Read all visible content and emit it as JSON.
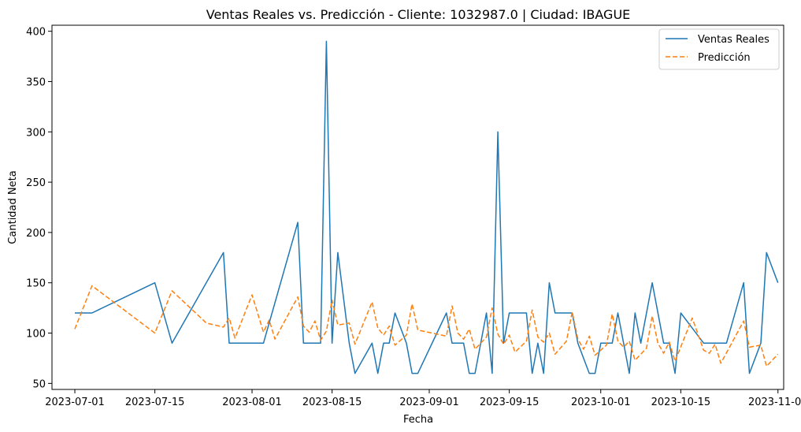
{
  "chart_data": {
    "type": "line",
    "title": "Ventas Reales vs. Predicción - Cliente: 1032987.0 | Ciudad: IBAGUE",
    "xlabel": "Fecha",
    "ylabel": "Cantidad Neta",
    "xlim": [
      "2023-06-27",
      "2023-11-02"
    ],
    "ylim": [
      44,
      406
    ],
    "x_ticks": [
      "2023-07-01",
      "2023-07-15",
      "2023-08-01",
      "2023-08-15",
      "2023-09-01",
      "2023-09-15",
      "2023-10-01",
      "2023-10-15",
      "2023-11-01"
    ],
    "y_ticks": [
      50,
      100,
      150,
      200,
      250,
      300,
      350,
      400
    ],
    "grid": false,
    "legend_position": "top-right",
    "series": [
      {
        "name": "Ventas Reales",
        "color": "#1f77b4",
        "style": "solid",
        "points": [
          [
            "2023-07-01",
            120
          ],
          [
            "2023-07-04",
            120
          ],
          [
            "2023-07-15",
            150
          ],
          [
            "2023-07-18",
            90
          ],
          [
            "2023-07-27",
            180
          ],
          [
            "2023-07-28",
            90
          ],
          [
            "2023-08-03",
            90
          ],
          [
            "2023-08-09",
            210
          ],
          [
            "2023-08-10",
            90
          ],
          [
            "2023-08-13",
            90
          ],
          [
            "2023-08-14",
            390
          ],
          [
            "2023-08-15",
            90
          ],
          [
            "2023-08-16",
            180
          ],
          [
            "2023-08-18",
            90
          ],
          [
            "2023-08-19",
            60
          ],
          [
            "2023-08-22",
            90
          ],
          [
            "2023-08-23",
            60
          ],
          [
            "2023-08-24",
            90
          ],
          [
            "2023-08-25",
            90
          ],
          [
            "2023-08-26",
            120
          ],
          [
            "2023-08-28",
            90
          ],
          [
            "2023-08-29",
            60
          ],
          [
            "2023-08-30",
            60
          ],
          [
            "2023-09-04",
            120
          ],
          [
            "2023-09-05",
            90
          ],
          [
            "2023-09-07",
            90
          ],
          [
            "2023-09-08",
            60
          ],
          [
            "2023-09-09",
            60
          ],
          [
            "2023-09-11",
            120
          ],
          [
            "2023-09-12",
            60
          ],
          [
            "2023-09-13",
            300
          ],
          [
            "2023-09-14",
            90
          ],
          [
            "2023-09-15",
            120
          ],
          [
            "2023-09-18",
            120
          ],
          [
            "2023-09-19",
            60
          ],
          [
            "2023-09-20",
            90
          ],
          [
            "2023-09-21",
            60
          ],
          [
            "2023-09-22",
            150
          ],
          [
            "2023-09-23",
            120
          ],
          [
            "2023-09-26",
            120
          ],
          [
            "2023-09-27",
            90
          ],
          [
            "2023-09-29",
            60
          ],
          [
            "2023-09-30",
            60
          ],
          [
            "2023-10-01",
            90
          ],
          [
            "2023-10-03",
            90
          ],
          [
            "2023-10-04",
            120
          ],
          [
            "2023-10-06",
            60
          ],
          [
            "2023-10-07",
            120
          ],
          [
            "2023-10-08",
            90
          ],
          [
            "2023-10-10",
            150
          ],
          [
            "2023-10-12",
            90
          ],
          [
            "2023-10-13",
            90
          ],
          [
            "2023-10-14",
            60
          ],
          [
            "2023-10-15",
            120
          ],
          [
            "2023-10-19",
            90
          ],
          [
            "2023-10-23",
            90
          ],
          [
            "2023-10-26",
            150
          ],
          [
            "2023-10-27",
            60
          ],
          [
            "2023-10-29",
            90
          ],
          [
            "2023-10-30",
            180
          ],
          [
            "2023-11-01",
            150
          ]
        ]
      },
      {
        "name": "Predicción",
        "color": "#ff7f0e",
        "style": "dashed",
        "points": [
          [
            "2023-07-01",
            104
          ],
          [
            "2023-07-04",
            147
          ],
          [
            "2023-07-15",
            100
          ],
          [
            "2023-07-18",
            142
          ],
          [
            "2023-07-24",
            110
          ],
          [
            "2023-07-27",
            106
          ],
          [
            "2023-07-28",
            115
          ],
          [
            "2023-07-29",
            95
          ],
          [
            "2023-08-01",
            138
          ],
          [
            "2023-08-03",
            101
          ],
          [
            "2023-08-04",
            113
          ],
          [
            "2023-08-05",
            94
          ],
          [
            "2023-08-09",
            136
          ],
          [
            "2023-08-10",
            107
          ],
          [
            "2023-08-11",
            101
          ],
          [
            "2023-08-12",
            112
          ],
          [
            "2023-08-13",
            93
          ],
          [
            "2023-08-14",
            102
          ],
          [
            "2023-08-15",
            133
          ],
          [
            "2023-08-16",
            108
          ],
          [
            "2023-08-18",
            110
          ],
          [
            "2023-08-19",
            89
          ],
          [
            "2023-08-22",
            131
          ],
          [
            "2023-08-23",
            105
          ],
          [
            "2023-08-24",
            98
          ],
          [
            "2023-08-25",
            107
          ],
          [
            "2023-08-26",
            88
          ],
          [
            "2023-08-28",
            98
          ],
          [
            "2023-08-29",
            129
          ],
          [
            "2023-08-30",
            103
          ],
          [
            "2023-09-04",
            97
          ],
          [
            "2023-09-05",
            127
          ],
          [
            "2023-09-06",
            100
          ],
          [
            "2023-09-07",
            94
          ],
          [
            "2023-09-08",
            104
          ],
          [
            "2023-09-09",
            84
          ],
          [
            "2023-09-11",
            96
          ],
          [
            "2023-09-12",
            125
          ],
          [
            "2023-09-13",
            99
          ],
          [
            "2023-09-14",
            89
          ],
          [
            "2023-09-15",
            98
          ],
          [
            "2023-09-16",
            81
          ],
          [
            "2023-09-18",
            92
          ],
          [
            "2023-09-19",
            123
          ],
          [
            "2023-09-20",
            96
          ],
          [
            "2023-09-21",
            91
          ],
          [
            "2023-09-22",
            100
          ],
          [
            "2023-09-23",
            79
          ],
          [
            "2023-09-25",
            92
          ],
          [
            "2023-09-26",
            121
          ],
          [
            "2023-09-27",
            94
          ],
          [
            "2023-09-28",
            84
          ],
          [
            "2023-09-29",
            97
          ],
          [
            "2023-09-30",
            78
          ],
          [
            "2023-10-02",
            88
          ],
          [
            "2023-10-03",
            119
          ],
          [
            "2023-10-04",
            92
          ],
          [
            "2023-10-05",
            86
          ],
          [
            "2023-10-06",
            92
          ],
          [
            "2023-10-07",
            73
          ],
          [
            "2023-10-09",
            85
          ],
          [
            "2023-10-10",
            117
          ],
          [
            "2023-10-11",
            90
          ],
          [
            "2023-10-12",
            80
          ],
          [
            "2023-10-13",
            91
          ],
          [
            "2023-10-14",
            72
          ],
          [
            "2023-10-17",
            115
          ],
          [
            "2023-10-19",
            83
          ],
          [
            "2023-10-20",
            80
          ],
          [
            "2023-10-21",
            89
          ],
          [
            "2023-10-22",
            70
          ],
          [
            "2023-10-26",
            112
          ],
          [
            "2023-10-27",
            86
          ],
          [
            "2023-10-29",
            88
          ],
          [
            "2023-10-30",
            67
          ],
          [
            "2023-11-01",
            79
          ]
        ]
      }
    ]
  }
}
